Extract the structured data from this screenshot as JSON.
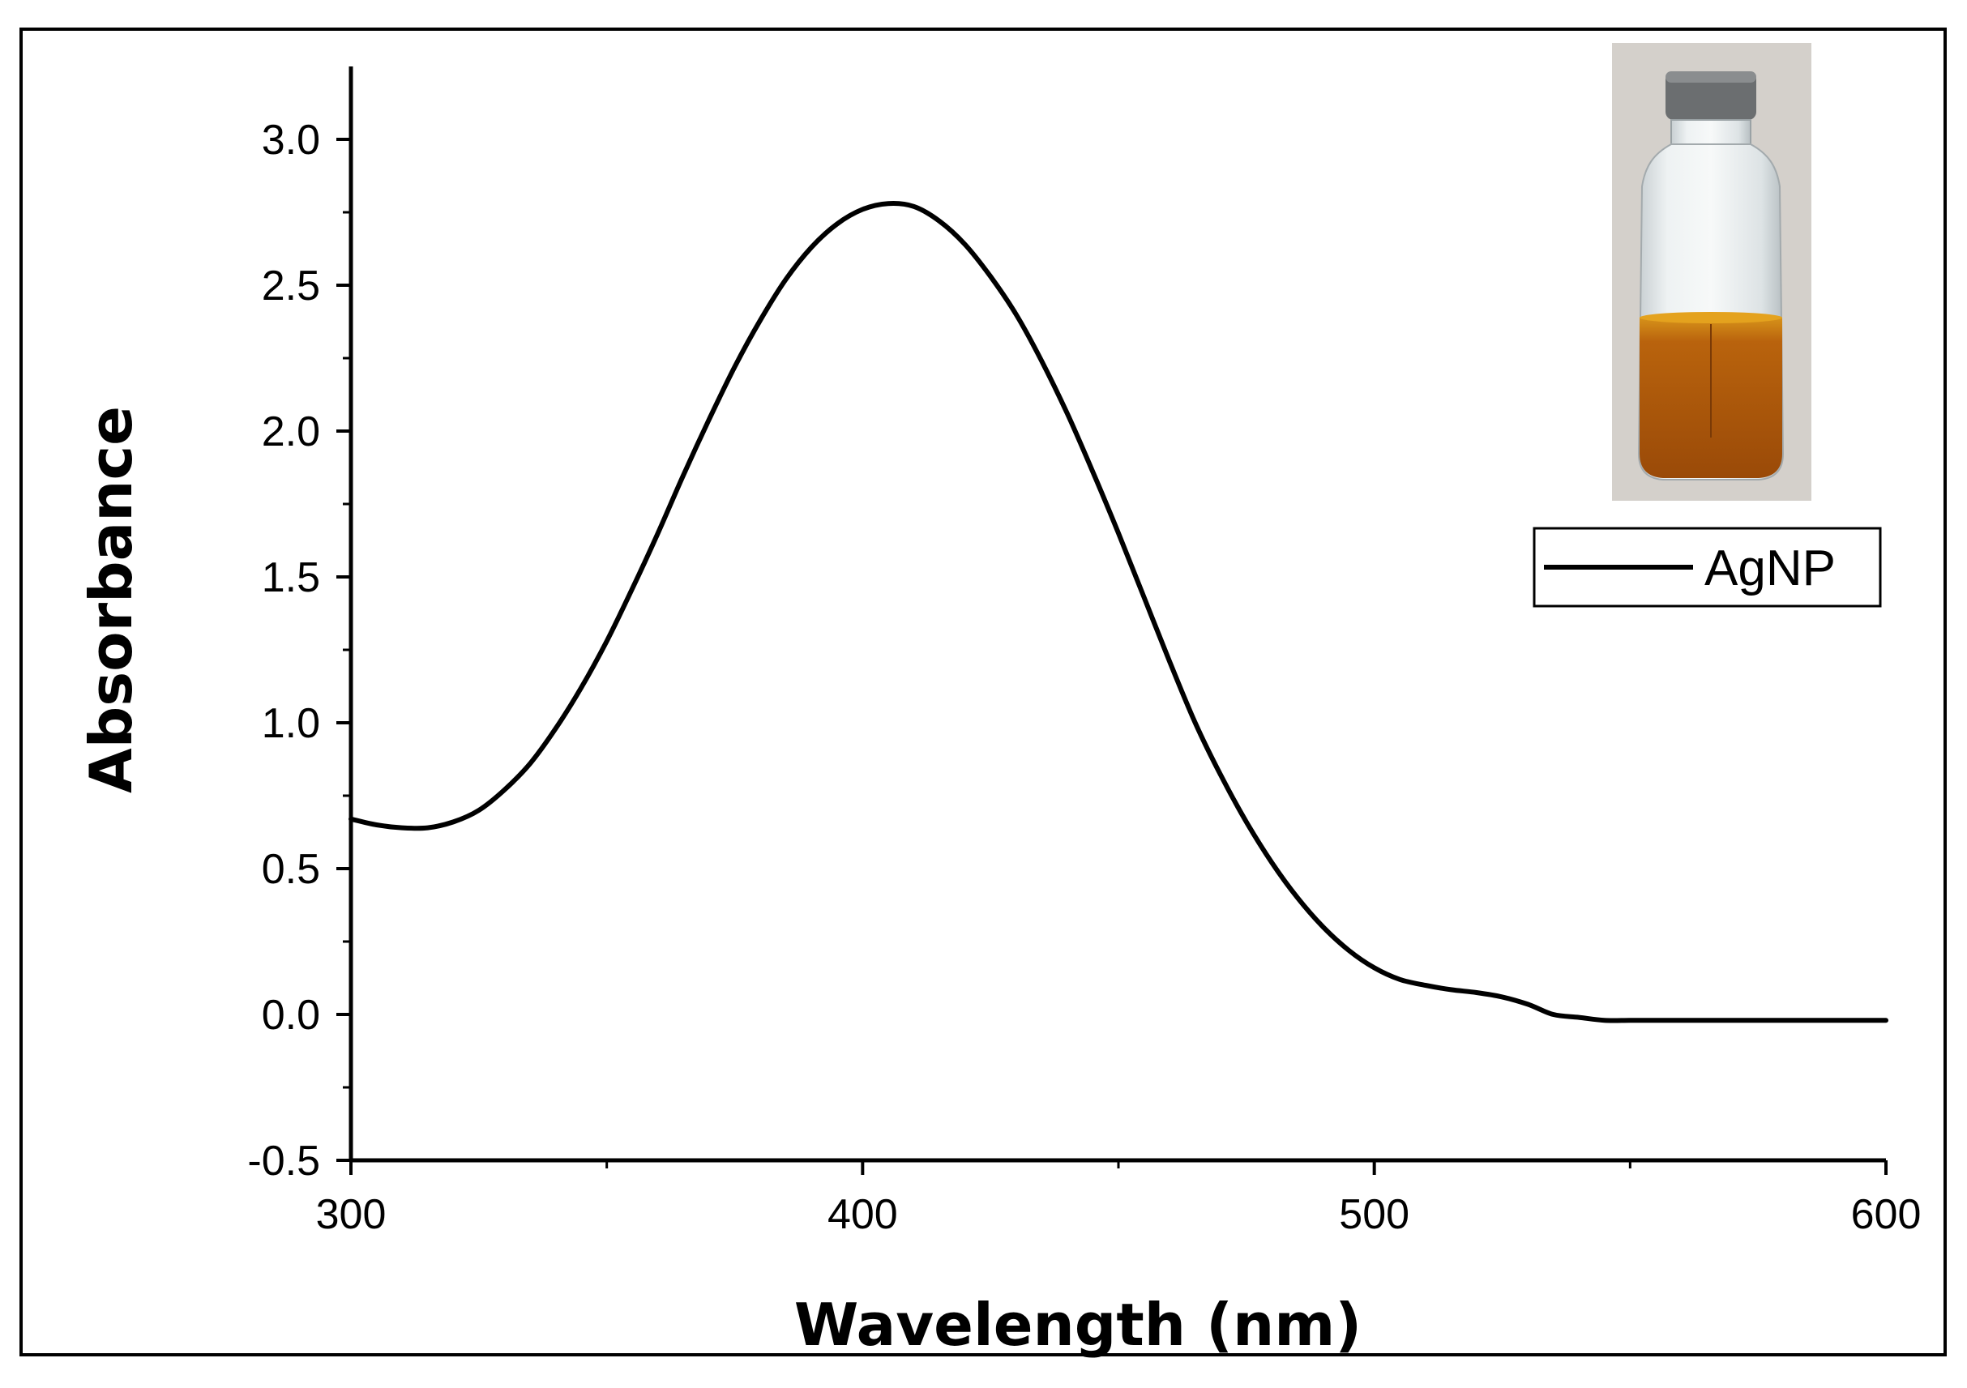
{
  "chart_data": {
    "type": "line",
    "xlabel": "Wavelength (nm)",
    "ylabel": "Absorbance",
    "xlim": [
      300,
      600
    ],
    "ylim": [
      -0.5,
      3.25
    ],
    "x_ticks": [
      300,
      400,
      500,
      600
    ],
    "x_tick_labels": [
      "300",
      "400",
      "500",
      "600"
    ],
    "y_ticks": [
      -0.5,
      0.0,
      0.5,
      1.0,
      1.5,
      2.0,
      2.5,
      3.0
    ],
    "y_tick_labels": [
      "-0.5",
      "0.0",
      "0.5",
      "1.0",
      "1.5",
      "2.0",
      "2.5",
      "3.0"
    ],
    "legend_position": "top-right",
    "inset": "photo of glass vial containing orange-brown AgNP solution",
    "series": [
      {
        "name": "AgNP",
        "color": "#000000",
        "x": [
          300,
          305,
          310,
          315,
          320,
          325,
          330,
          335,
          340,
          345,
          350,
          355,
          360,
          365,
          370,
          375,
          380,
          385,
          390,
          395,
          400,
          405,
          410,
          415,
          420,
          425,
          430,
          435,
          440,
          445,
          450,
          455,
          460,
          465,
          470,
          475,
          480,
          485,
          490,
          495,
          500,
          505,
          510,
          515,
          520,
          525,
          530,
          535,
          540,
          545,
          550,
          555,
          560,
          565,
          570,
          575,
          580,
          585,
          590,
          595,
          600
        ],
        "y": [
          0.67,
          0.65,
          0.64,
          0.64,
          0.66,
          0.7,
          0.77,
          0.86,
          0.98,
          1.12,
          1.28,
          1.46,
          1.65,
          1.85,
          2.04,
          2.22,
          2.38,
          2.52,
          2.63,
          2.71,
          2.76,
          2.78,
          2.77,
          2.72,
          2.64,
          2.53,
          2.4,
          2.24,
          2.06,
          1.86,
          1.65,
          1.43,
          1.21,
          1.0,
          0.82,
          0.66,
          0.52,
          0.4,
          0.3,
          0.22,
          0.16,
          0.12,
          0.1,
          0.085,
          0.075,
          0.06,
          0.035,
          0.0,
          -0.01,
          -0.02,
          -0.02,
          -0.02,
          -0.02,
          -0.02,
          -0.02,
          -0.02,
          -0.02,
          -0.02,
          -0.02,
          -0.02,
          -0.02
        ]
      }
    ]
  }
}
